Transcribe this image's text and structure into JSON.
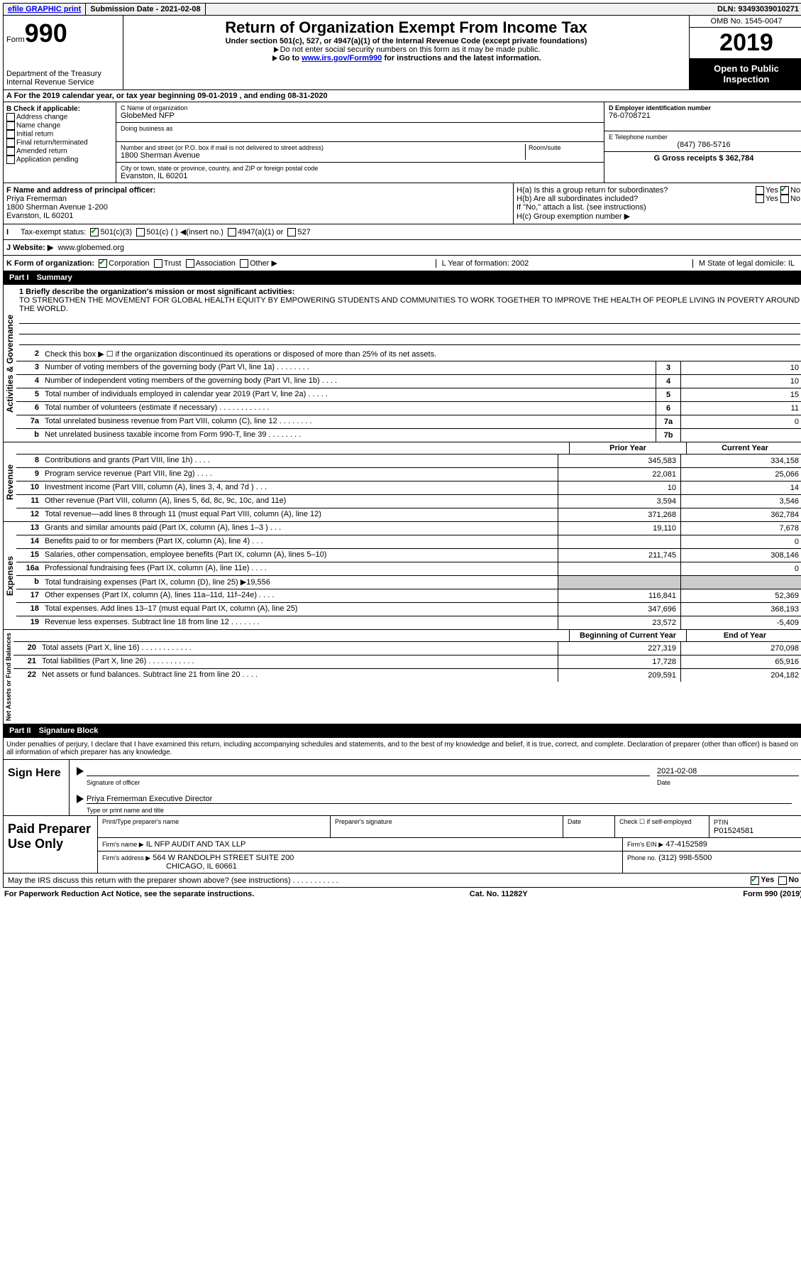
{
  "top_bar": {
    "efile": "efile GRAPHIC print",
    "sub_label": "Submission Date - 2021-02-08",
    "dln": "DLN: 93493039010271"
  },
  "header": {
    "form_prefix": "Form",
    "form_num": "990",
    "dept": "Department of the Treasury",
    "irs": "Internal Revenue Service",
    "title": "Return of Organization Exempt From Income Tax",
    "subtitle": "Under section 501(c), 527, or 4947(a)(1) of the Internal Revenue Code (except private foundations)",
    "note1": "Do not enter social security numbers on this form as it may be made public.",
    "note2_a": "Go to ",
    "note2_link": "www.irs.gov/Form990",
    "note2_b": " for instructions and the latest information.",
    "omb": "OMB No. 1545-0047",
    "year": "2019",
    "open": "Open to Public Inspection"
  },
  "section_a": "A For the 2019 calendar year, or tax year beginning 09-01-2019   , and ending 08-31-2020",
  "col_b": {
    "title": "B Check if applicable:",
    "opts": [
      "Address change",
      "Name change",
      "Initial return",
      "Final return/terminated",
      "Amended return",
      "Application pending"
    ]
  },
  "col_c": {
    "c_label": "C Name of organization",
    "org": "GlobeMed NFP",
    "dba_label": "Doing business as",
    "addr_label": "Number and street (or P.O. box if mail is not delivered to street address)",
    "room_label": "Room/suite",
    "addr": "1800 Sherman Avenue",
    "city_label": "City or town, state or province, country, and ZIP or foreign postal code",
    "city": "Evanston, IL  60201"
  },
  "col_d": {
    "d_label": "D Employer identification number",
    "ein": "76-0708721",
    "e_label": "E Telephone number",
    "phone": "(847) 786-5716",
    "g_label": "G Gross receipts $ 362,784"
  },
  "section_f": {
    "f_label": "F  Name and address of principal officer:",
    "name": "Priya Fremerman",
    "addr": "1800 Sherman Avenue 1-200",
    "city": "Evanston, IL  60201"
  },
  "section_h": {
    "ha": "H(a)  Is this a group return for subordinates?",
    "hb": "H(b)  Are all subordinates included?",
    "hb_note": "If \"No,\" attach a list. (see instructions)",
    "hc": "H(c)  Group exemption number ▶",
    "yes": "Yes",
    "no": "No"
  },
  "tax_status": {
    "label": "Tax-exempt status:",
    "o1": "501(c)(3)",
    "o2": "501(c) (  ) ◀(insert no.)",
    "o3": "4947(a)(1) or",
    "o4": "527"
  },
  "website": {
    "label": "J   Website: ▶",
    "value": "www.globemed.org"
  },
  "k_row": {
    "label": "K Form of organization:",
    "o1": "Corporation",
    "o2": "Trust",
    "o3": "Association",
    "o4": "Other ▶",
    "l": "L Year of formation: 2002",
    "m": "M State of legal domicile: IL"
  },
  "part1": {
    "title": "Part I",
    "name": "Summary"
  },
  "summary": {
    "l1_label": "1  Briefly describe the organization's mission or most significant activities:",
    "mission": "TO STRENGTHEN THE MOVEMENT FOR GLOBAL HEALTH EQUITY BY EMPOWERING STUDENTS AND COMMUNITIES TO WORK TOGETHER TO IMPROVE THE HEALTH OF PEOPLE LIVING IN POVERTY AROUND THE WORLD.",
    "l2": "Check this box ▶ ☐  if the organization discontinued its operations or disposed of more than 25% of its net assets.",
    "rows_ag": [
      {
        "n": "3",
        "d": "Number of voting members of the governing body (Part VI, line 1a)   .    .    .    .    .    .    .    .",
        "b": "3",
        "v": "10"
      },
      {
        "n": "4",
        "d": "Number of independent voting members of the governing body (Part VI, line 1b)   .    .    .    .",
        "b": "4",
        "v": "10"
      },
      {
        "n": "5",
        "d": "Total number of individuals employed in calendar year 2019 (Part V, line 2a)   .    .    .    .    .",
        "b": "5",
        "v": "15"
      },
      {
        "n": "6",
        "d": "Total number of volunteers (estimate if necessary)    .    .    .    .    .    .    .    .    .    .    .    .",
        "b": "6",
        "v": "11"
      },
      {
        "n": "7a",
        "d": "Total unrelated business revenue from Part VIII, column (C), line 12   .    .    .    .    .    .    .    .",
        "b": "7a",
        "v": "0"
      },
      {
        "n": "b",
        "d": "Net unrelated business taxable income from Form 990-T, line 39    .    .    .    .    .    .    .    .",
        "b": "7b",
        "v": ""
      }
    ],
    "prior_hdr": "Prior Year",
    "curr_hdr": "Current Year",
    "rows_rev": [
      {
        "n": "8",
        "d": "Contributions and grants (Part VIII, line 1h)   .    .    .    .",
        "p": "345,583",
        "c": "334,158"
      },
      {
        "n": "9",
        "d": "Program service revenue (Part VIII, line 2g)   .    .    .    .",
        "p": "22,081",
        "c": "25,066"
      },
      {
        "n": "10",
        "d": "Investment income (Part VIII, column (A), lines 3, 4, and 7d )   .    .    .",
        "p": "10",
        "c": "14"
      },
      {
        "n": "11",
        "d": "Other revenue (Part VIII, column (A), lines 5, 6d, 8c, 9c, 10c, and 11e)",
        "p": "3,594",
        "c": "3,546"
      },
      {
        "n": "12",
        "d": "Total revenue—add lines 8 through 11 (must equal Part VIII, column (A), line 12)",
        "p": "371,268",
        "c": "362,784"
      }
    ],
    "rows_exp": [
      {
        "n": "13",
        "d": "Grants and similar amounts paid (Part IX, column (A), lines 1–3 )   .    .    .",
        "p": "19,110",
        "c": "7,678"
      },
      {
        "n": "14",
        "d": "Benefits paid to or for members (Part IX, column (A), line 4)   .    .    .",
        "p": "",
        "c": "0"
      },
      {
        "n": "15",
        "d": "Salaries, other compensation, employee benefits (Part IX, column (A), lines 5–10)",
        "p": "211,745",
        "c": "308,146"
      },
      {
        "n": "16a",
        "d": "Professional fundraising fees (Part IX, column (A), line 11e)   .    .    .    .",
        "p": "",
        "c": "0"
      },
      {
        "n": "b",
        "d": "Total fundraising expenses (Part IX, column (D), line 25) ▶19,556",
        "p": "__shade__",
        "c": "__shade__"
      },
      {
        "n": "17",
        "d": "Other expenses (Part IX, column (A), lines 11a–11d, 11f–24e)   .    .    .    .",
        "p": "116,841",
        "c": "52,369"
      },
      {
        "n": "18",
        "d": "Total expenses. Add lines 13–17 (must equal Part IX, column (A), line 25)",
        "p": "347,696",
        "c": "368,193"
      },
      {
        "n": "19",
        "d": "Revenue less expenses. Subtract line 18 from line 12 .    .    .    .    .    .    .",
        "p": "23,572",
        "c": "-5,409"
      }
    ],
    "na_hdr_a": "Beginning of Current Year",
    "na_hdr_b": "End of Year",
    "rows_na": [
      {
        "n": "20",
        "d": "Total assets (Part X, line 16)  .    .    .    .    .    .    .    .    .    .    .    .",
        "p": "227,319",
        "c": "270,098"
      },
      {
        "n": "21",
        "d": "Total liabilities (Part X, line 26)  .    .    .    .    .    .    .    .    .    .    .",
        "p": "17,728",
        "c": "65,916"
      },
      {
        "n": "22",
        "d": "Net assets or fund balances. Subtract line 21 from line 20   .    .    .    .",
        "p": "209,591",
        "c": "204,182"
      }
    ],
    "vtab_ag": "Activities & Governance",
    "vtab_rev": "Revenue",
    "vtab_exp": "Expenses",
    "vtab_na": "Net Assets or Fund Balances"
  },
  "part2": {
    "title": "Part II",
    "name": "Signature Block"
  },
  "sig": {
    "decl": "Under penalties of perjury, I declare that I have examined this return, including accompanying schedules and statements, and to the best of my knowledge and belief, it is true, correct, and complete. Declaration of preparer (other than officer) is based on all information of which preparer has any knowledge.",
    "sign_here": "Sign Here",
    "sig_officer": "Signature of officer",
    "date_label": "Date",
    "date_val": "2021-02-08",
    "officer_name": "Priya Fremerman  Executive Director",
    "type_label": "Type or print name and title"
  },
  "prep": {
    "title": "Paid Preparer Use Only",
    "h1": "Print/Type preparer's name",
    "h2": "Preparer's signature",
    "h3": "Date",
    "h4a": "Check ☐ if self-employed",
    "h4b": "PTIN",
    "ptin": "P01524581",
    "firm_label": "Firm's name    ▶",
    "firm": "IL NFP AUDIT AND TAX LLP",
    "ein_label": "Firm's EIN ▶",
    "ein": "47-4152589",
    "addr_label": "Firm's address ▶",
    "addr1": "564 W RANDOLPH STREET SUITE 200",
    "addr2": "CHICAGO, IL  60661",
    "phone_label": "Phone no.",
    "phone": "(312) 998-5500"
  },
  "discuss": {
    "q": "May the IRS discuss this return with the preparer shown above? (see instructions)   .    .    .    .    .    .    .    .    .    .    .",
    "yes": "Yes",
    "no": "No"
  },
  "footer": {
    "left": "For Paperwork Reduction Act Notice, see the separate instructions.",
    "mid": "Cat. No. 11282Y",
    "right": "Form 990 (2019)"
  }
}
